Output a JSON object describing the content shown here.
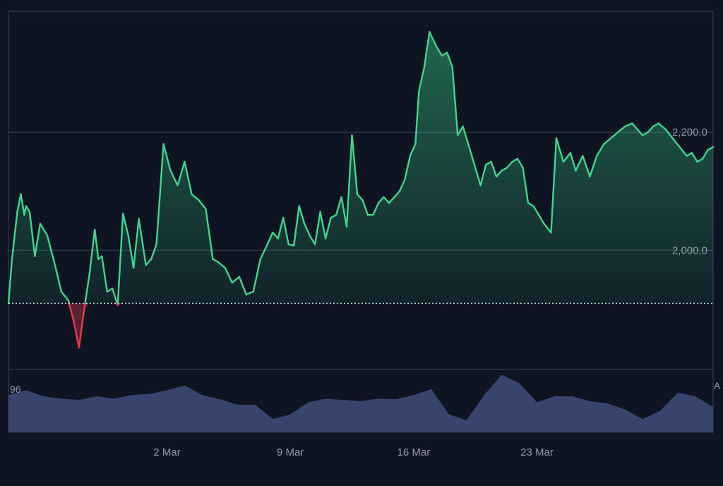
{
  "theme": {
    "background": "#0e1422",
    "frame": "#3a4152",
    "grid": "#3a4152",
    "up_color": "#3dd68c",
    "down_color": "#e8394a",
    "volume_color": "#3c4772",
    "axis_text": "#8f97a8"
  },
  "chart_data": [
    {
      "type": "area",
      "baseline": 1910,
      "ylim": [
        1798,
        2405
      ],
      "y_ticks": [
        2000,
        2200
      ],
      "y_tick_labels": [
        "2,000.0",
        "2,200.0"
      ],
      "x_ticks": [
        9,
        16,
        23,
        30
      ],
      "x_tick_labels": [
        "2 Mar",
        "9 Mar",
        "16 Mar",
        "23 Mar"
      ],
      "x_range": [
        0,
        40
      ],
      "grid": true,
      "series": [
        {
          "x": [
            0,
            0.2,
            0.5,
            0.7,
            0.9,
            1.0,
            1.2,
            1.5,
            1.8,
            2.2,
            2.6,
            3.0,
            3.4,
            3.7,
            4.0,
            4.3,
            4.6,
            4.9,
            5.1,
            5.3,
            5.6,
            5.9,
            6.2,
            6.5,
            6.8,
            7.1,
            7.4,
            7.8,
            8.1,
            8.4,
            8.8,
            9.2,
            9.6,
            10.0,
            10.4,
            10.8,
            11.2,
            11.6,
            11.9,
            12.3,
            12.7,
            13.1,
            13.5,
            13.9,
            14.3,
            14.7,
            15.0,
            15.3,
            15.6,
            15.9,
            16.2,
            16.5,
            16.8,
            17.1,
            17.4,
            17.7,
            18.0,
            18.3,
            18.6,
            18.9,
            19.2,
            19.5,
            19.8,
            20.1,
            20.4,
            20.7,
            21.0,
            21.3,
            21.6,
            21.9,
            22.2,
            22.5,
            22.8,
            23.1,
            23.3,
            23.6,
            23.9,
            24.3,
            24.6,
            24.9,
            25.2,
            25.5,
            25.8,
            26.1,
            26.5,
            26.8,
            27.1,
            27.4,
            27.7,
            28.0,
            28.3,
            28.6,
            28.9,
            29.2,
            29.5,
            29.8,
            30.1,
            30.4,
            30.8,
            31.1,
            31.5,
            31.9,
            32.2,
            32.6,
            33.0,
            33.4,
            33.8,
            34.2,
            34.6,
            35.0,
            35.4,
            35.7,
            36.0,
            36.3,
            36.6,
            36.9,
            37.3,
            37.7,
            38.1,
            38.5,
            38.8,
            39.1,
            39.4,
            39.7,
            40.0
          ],
          "y": [
            1910,
            1985,
            2065,
            2095,
            2060,
            2075,
            2065,
            1990,
            2045,
            2025,
            1980,
            1930,
            1915,
            1880,
            1835,
            1900,
            1960,
            2035,
            1985,
            1990,
            1930,
            1935,
            1907,
            2062,
            2025,
            1970,
            2053,
            1975,
            1985,
            2010,
            2180,
            2135,
            2110,
            2150,
            2095,
            2085,
            2070,
            1985,
            1980,
            1970,
            1945,
            1955,
            1925,
            1930,
            1985,
            2010,
            2030,
            2020,
            2055,
            2010,
            2008,
            2075,
            2045,
            2025,
            2010,
            2065,
            2020,
            2055,
            2060,
            2090,
            2040,
            2195,
            2095,
            2085,
            2060,
            2060,
            2080,
            2090,
            2080,
            2090,
            2100,
            2120,
            2160,
            2180,
            2270,
            2310,
            2370,
            2345,
            2330,
            2335,
            2310,
            2195,
            2210,
            2180,
            2140,
            2110,
            2145,
            2150,
            2125,
            2135,
            2140,
            2150,
            2155,
            2140,
            2080,
            2075,
            2060,
            2045,
            2030,
            2190,
            2150,
            2165,
            2135,
            2160,
            2125,
            2160,
            2180,
            2190,
            2200,
            2210,
            2215,
            2205,
            2195,
            2200,
            2210,
            2215,
            2205,
            2190,
            2175,
            2160,
            2165,
            2150,
            2155,
            2170,
            2175
          ]
        }
      ]
    },
    {
      "type": "area",
      "series": [
        {
          "x": [
            0,
            1,
            2,
            3,
            4,
            5,
            6,
            7,
            8,
            9,
            10,
            11,
            12,
            13,
            14,
            15,
            16,
            17,
            18,
            19,
            20,
            21,
            22,
            23,
            24,
            25,
            26,
            27,
            28,
            29,
            30,
            31,
            32,
            33,
            34,
            35,
            36,
            37,
            38,
            39,
            40
          ],
          "y": [
            0.62,
            0.7,
            0.6,
            0.56,
            0.54,
            0.6,
            0.56,
            0.62,
            0.64,
            0.7,
            0.78,
            0.62,
            0.55,
            0.46,
            0.46,
            0.22,
            0.3,
            0.5,
            0.56,
            0.54,
            0.52,
            0.56,
            0.55,
            0.62,
            0.72,
            0.3,
            0.2,
            0.62,
            0.96,
            0.82,
            0.5,
            0.6,
            0.6,
            0.52,
            0.48,
            0.38,
            0.22,
            0.36,
            0.66,
            0.6,
            0.42
          ]
        }
      ],
      "left_label": "96",
      "right_label": "A"
    }
  ]
}
